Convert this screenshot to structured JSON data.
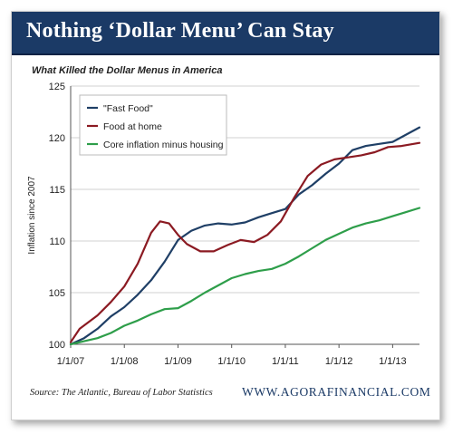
{
  "header": {
    "title": "Nothing ‘Dollar Menu’ Can Stay"
  },
  "footer": {
    "source": "Source: The Atlantic, Bureau of Labor Statistics",
    "brand": "WWW.AGORAFINANCIAL.COM"
  },
  "colors": {
    "banner": "#1b3a66",
    "fast_food": "#1f3f66",
    "food_at_home": "#8b1a22",
    "core_inflation": "#2e9e4a",
    "grid": "#d0d0d0"
  },
  "chart_data": {
    "type": "line",
    "title": "What Killed the Dollar Menus in America",
    "xlabel": "",
    "ylabel": "Inflation since 2007",
    "xlim": [
      "2007-01",
      "2013-07"
    ],
    "ylim": [
      100,
      125
    ],
    "x_ticks": [
      "1/1/07",
      "1/1/08",
      "1/1/09",
      "1/1/10",
      "1/1/11",
      "1/1/12",
      "1/1/13"
    ],
    "y_ticks": [
      100,
      105,
      110,
      115,
      120,
      125
    ],
    "grid": "horizontal",
    "legend_position": "top-left",
    "series": [
      {
        "name": "\"Fast Food\"",
        "color": "#1f3f66",
        "points": [
          [
            "2007-01",
            100.0
          ],
          [
            "2007-04",
            100.6
          ],
          [
            "2007-07",
            101.5
          ],
          [
            "2007-10",
            102.7
          ],
          [
            "2008-01",
            103.6
          ],
          [
            "2008-04",
            104.8
          ],
          [
            "2008-07",
            106.2
          ],
          [
            "2008-10",
            108.0
          ],
          [
            "2009-01",
            110.1
          ],
          [
            "2009-04",
            111.0
          ],
          [
            "2009-07",
            111.5
          ],
          [
            "2009-10",
            111.7
          ],
          [
            "2010-01",
            111.6
          ],
          [
            "2010-04",
            111.8
          ],
          [
            "2010-07",
            112.3
          ],
          [
            "2010-10",
            112.7
          ],
          [
            "2011-01",
            113.1
          ],
          [
            "2011-04",
            114.5
          ],
          [
            "2011-07",
            115.4
          ],
          [
            "2011-10",
            116.5
          ],
          [
            "2012-01",
            117.5
          ],
          [
            "2012-04",
            118.8
          ],
          [
            "2012-07",
            119.2
          ],
          [
            "2012-10",
            119.4
          ],
          [
            "2013-01",
            119.6
          ],
          [
            "2013-04",
            120.3
          ],
          [
            "2013-07",
            121.0
          ]
        ]
      },
      {
        "name": "Food at home",
        "color": "#8b1a22",
        "points": [
          [
            "2007-01",
            100.2
          ],
          [
            "2007-03",
            101.5
          ],
          [
            "2007-07",
            102.8
          ],
          [
            "2007-10",
            104.1
          ],
          [
            "2008-01",
            105.6
          ],
          [
            "2008-04",
            107.8
          ],
          [
            "2008-07",
            110.8
          ],
          [
            "2008-09",
            111.9
          ],
          [
            "2008-11",
            111.7
          ],
          [
            "2009-01",
            110.6
          ],
          [
            "2009-03",
            109.7
          ],
          [
            "2009-06",
            109.0
          ],
          [
            "2009-09",
            109.0
          ],
          [
            "2009-12",
            109.6
          ],
          [
            "2010-03",
            110.1
          ],
          [
            "2010-06",
            109.9
          ],
          [
            "2010-09",
            110.6
          ],
          [
            "2010-12",
            111.9
          ],
          [
            "2011-03",
            114.2
          ],
          [
            "2011-06",
            116.3
          ],
          [
            "2011-09",
            117.4
          ],
          [
            "2011-12",
            117.9
          ],
          [
            "2012-03",
            118.1
          ],
          [
            "2012-06",
            118.3
          ],
          [
            "2012-09",
            118.6
          ],
          [
            "2012-12",
            119.1
          ],
          [
            "2013-03",
            119.2
          ],
          [
            "2013-07",
            119.5
          ]
        ]
      },
      {
        "name": "Core inflation minus housing",
        "color": "#2e9e4a",
        "points": [
          [
            "2007-01",
            100.0
          ],
          [
            "2007-04",
            100.3
          ],
          [
            "2007-07",
            100.6
          ],
          [
            "2007-10",
            101.1
          ],
          [
            "2008-01",
            101.8
          ],
          [
            "2008-04",
            102.3
          ],
          [
            "2008-07",
            102.9
          ],
          [
            "2008-10",
            103.4
          ],
          [
            "2009-01",
            103.5
          ],
          [
            "2009-04",
            104.2
          ],
          [
            "2009-07",
            105.0
          ],
          [
            "2009-10",
            105.7
          ],
          [
            "2010-01",
            106.4
          ],
          [
            "2010-04",
            106.8
          ],
          [
            "2010-07",
            107.1
          ],
          [
            "2010-10",
            107.3
          ],
          [
            "2011-01",
            107.8
          ],
          [
            "2011-04",
            108.5
          ],
          [
            "2011-07",
            109.3
          ],
          [
            "2011-10",
            110.1
          ],
          [
            "2012-01",
            110.7
          ],
          [
            "2012-04",
            111.3
          ],
          [
            "2012-07",
            111.7
          ],
          [
            "2012-10",
            112.0
          ],
          [
            "2013-01",
            112.4
          ],
          [
            "2013-04",
            112.8
          ],
          [
            "2013-07",
            113.2
          ]
        ]
      }
    ]
  }
}
